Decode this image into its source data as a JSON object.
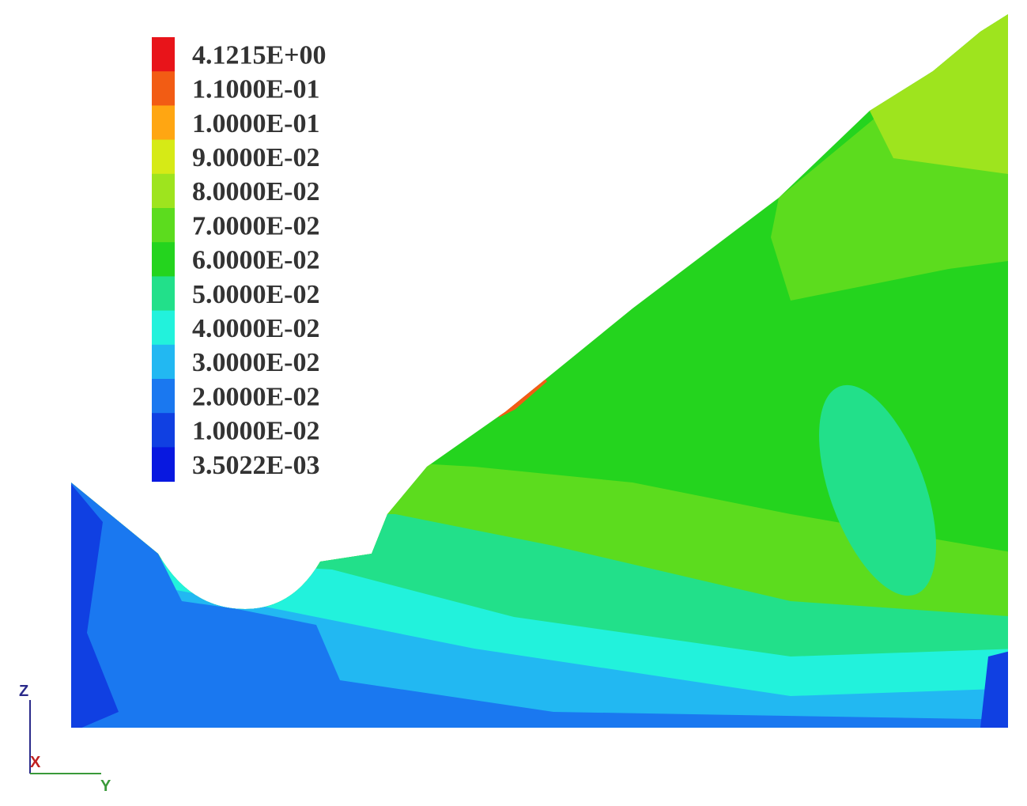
{
  "legend": {
    "items": [
      {
        "label": "4.1215E+00",
        "color": "#e8141a"
      },
      {
        "label": "1.1000E-01",
        "color": "#f25c14"
      },
      {
        "label": "1.0000E-01",
        "color": "#ffa612"
      },
      {
        "label": "9.0000E-02",
        "color": "#d6ea16"
      },
      {
        "label": "8.0000E-02",
        "color": "#9ee41e"
      },
      {
        "label": "7.0000E-02",
        "color": "#5cdc1e"
      },
      {
        "label": "6.0000E-02",
        "color": "#24d41e"
      },
      {
        "label": "5.0000E-02",
        "color": "#22e08a"
      },
      {
        "label": "4.0000E-02",
        "color": "#22f2dc"
      },
      {
        "label": "3.0000E-02",
        "color": "#22b8f2"
      },
      {
        "label": "2.0000E-02",
        "color": "#1a78f0"
      },
      {
        "label": "1.0000E-02",
        "color": "#1040e2"
      },
      {
        "label": "3.5022E-03",
        "color": "#0818e0"
      }
    ]
  },
  "axes_triad": {
    "z": "Z",
    "x": "X",
    "y": "Y"
  }
}
